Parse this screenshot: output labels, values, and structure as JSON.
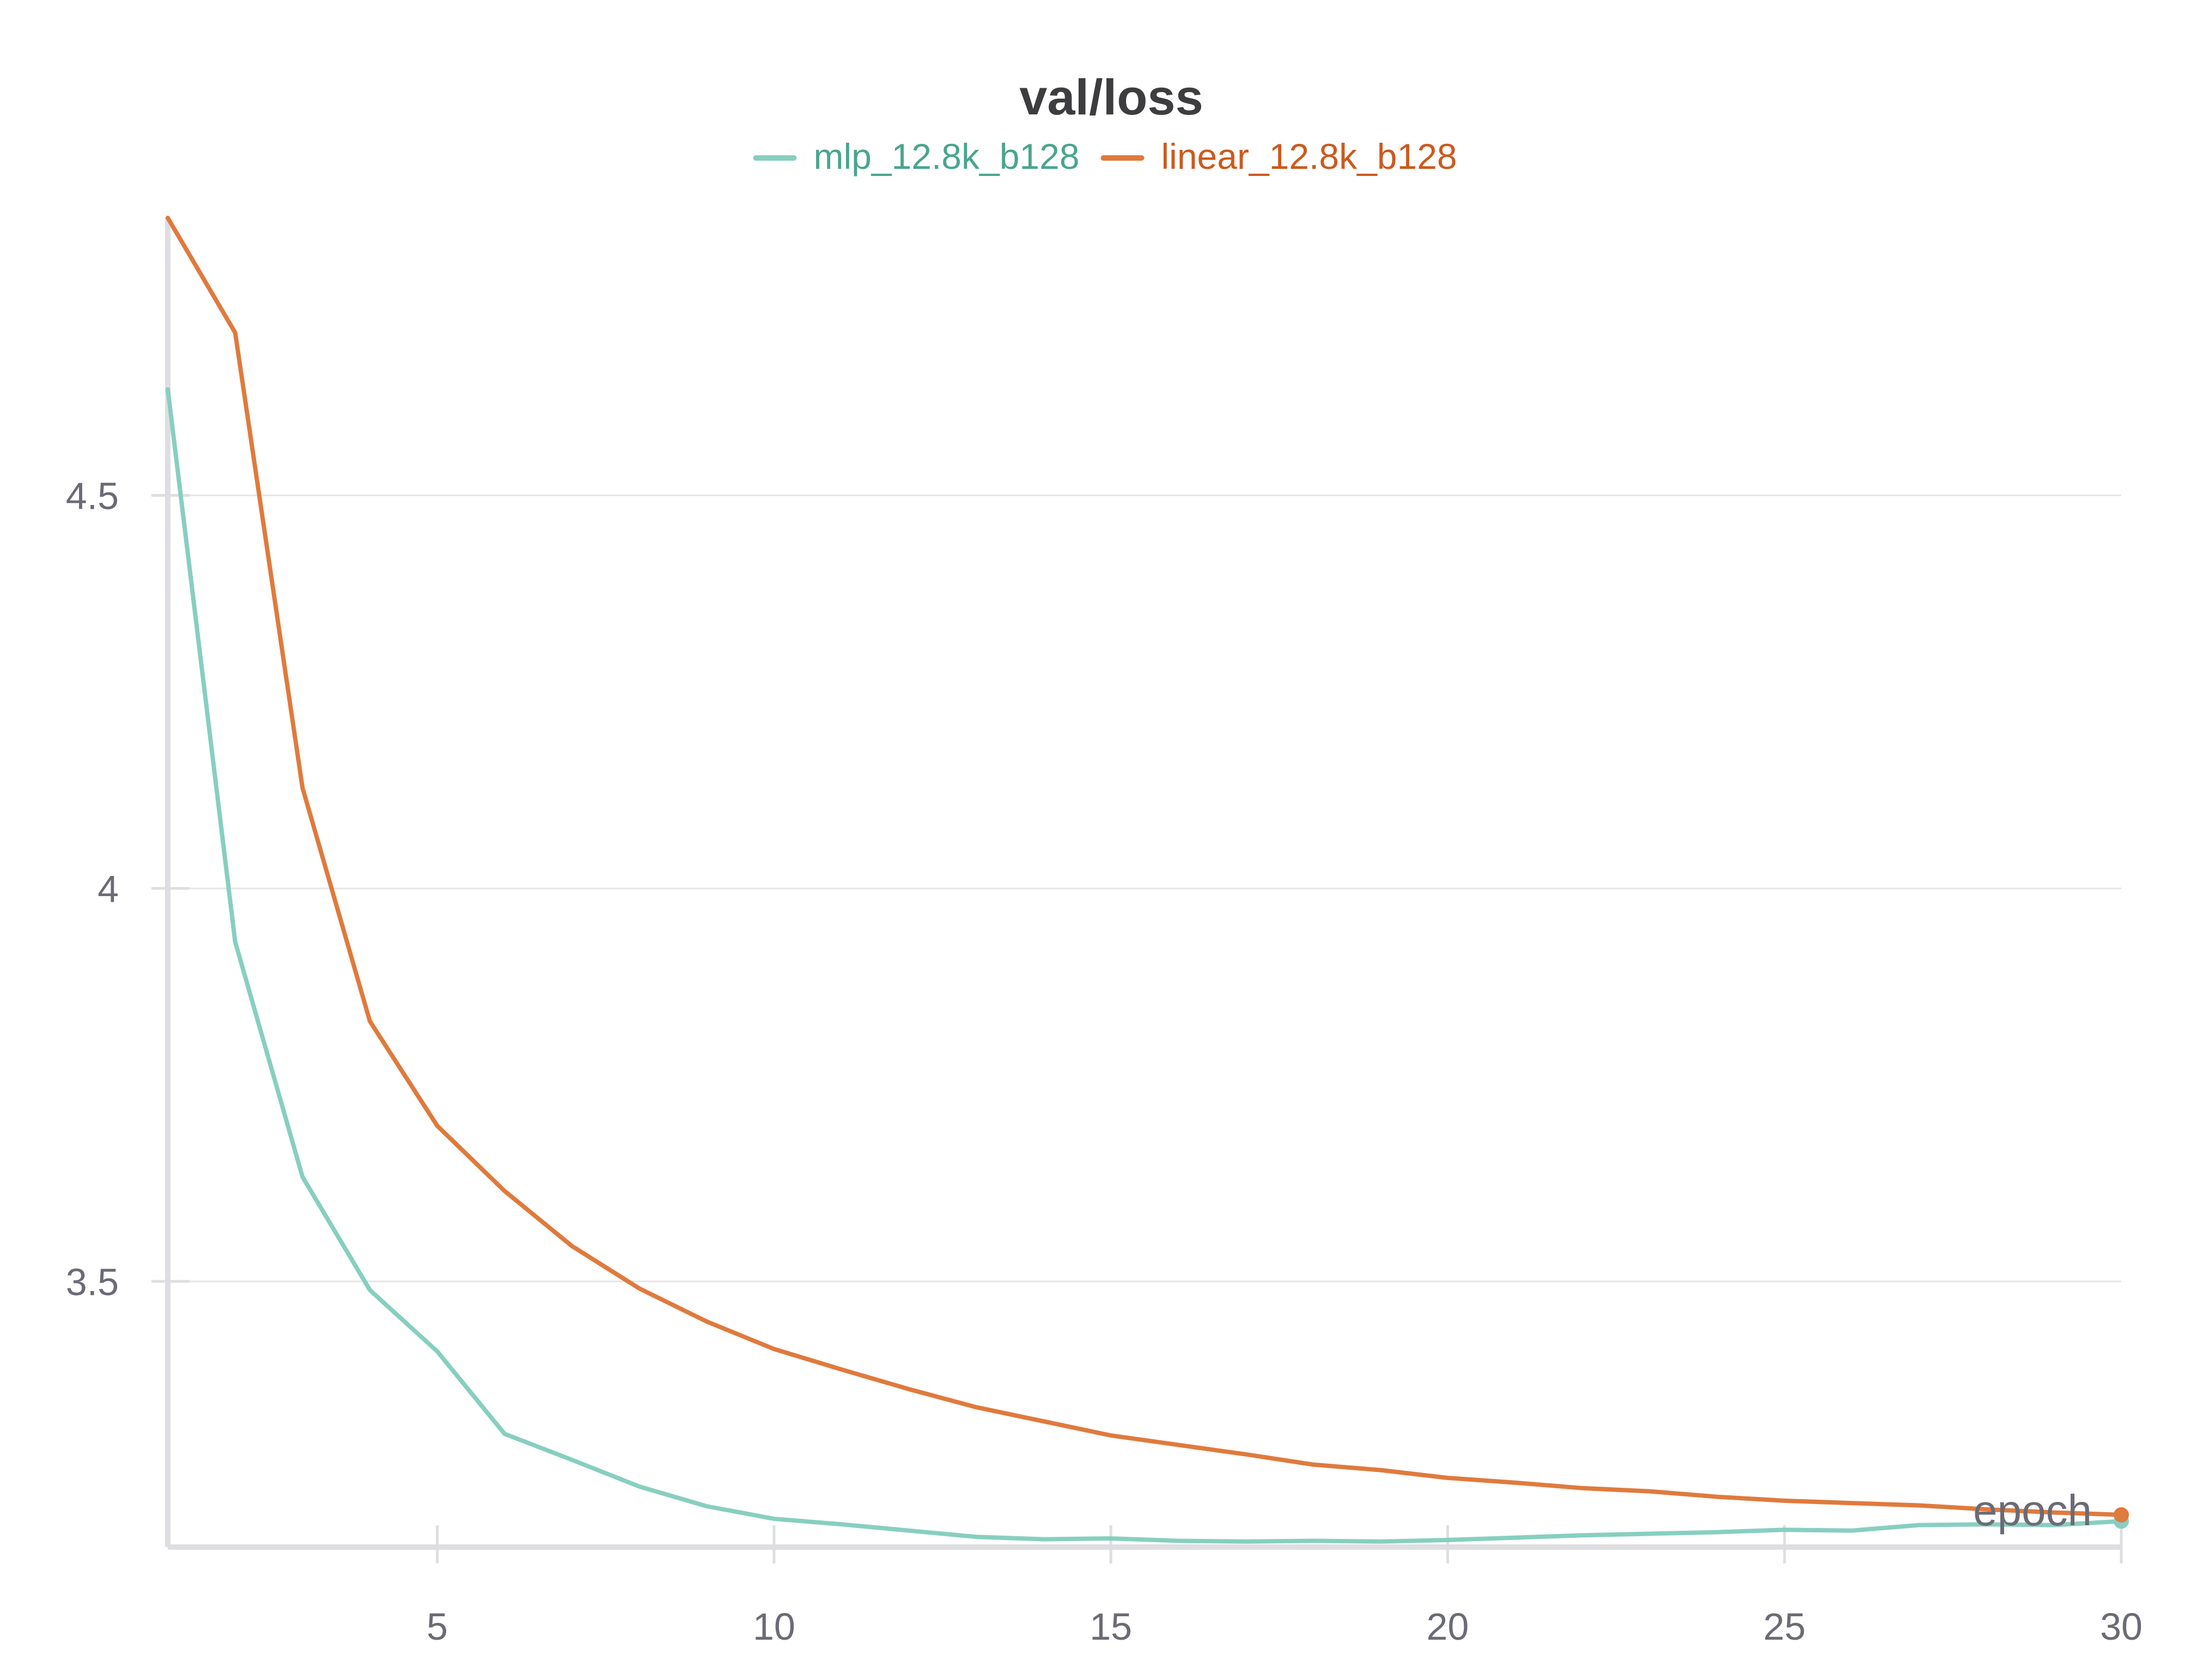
{
  "chart_data": {
    "type": "line",
    "title": "val/loss",
    "xlabel": "epoch",
    "ylabel": "",
    "x_ticks": [
      5,
      10,
      15,
      20,
      25,
      30
    ],
    "x_tick_labels": [
      "5",
      "10",
      "15",
      "20",
      "25",
      "30"
    ],
    "y_ticks": [
      3.5,
      4,
      4.5
    ],
    "y_tick_labels": [
      "3.5",
      "4",
      "4.5"
    ],
    "xlim": [
      1,
      30
    ],
    "ylim": [
      3.162,
      4.853
    ],
    "grid": true,
    "legend_position": "top-center",
    "x": [
      1,
      2,
      3,
      4,
      5,
      6,
      7,
      8,
      9,
      10,
      11,
      12,
      13,
      14,
      15,
      16,
      17,
      18,
      19,
      20,
      21,
      22,
      23,
      24,
      25,
      26,
      27,
      28,
      29,
      30
    ],
    "series": [
      {
        "name": "mlp_12.8k_b128",
        "color": "#87cfc0",
        "label_color": "#4aa58f",
        "values": [
          4.635,
          3.932,
          3.633,
          3.489,
          3.411,
          3.306,
          3.273,
          3.239,
          3.214,
          3.198,
          3.191,
          3.183,
          3.175,
          3.172,
          3.173,
          3.17,
          3.169,
          3.17,
          3.169,
          3.171,
          3.174,
          3.177,
          3.179,
          3.181,
          3.184,
          3.183,
          3.19,
          3.191,
          3.19,
          3.195
        ]
      },
      {
        "name": "linear_12.8k_b128",
        "color": "#e07a3d",
        "label_color": "#cc5a1e",
        "values": [
          4.853,
          4.707,
          4.128,
          3.831,
          3.698,
          3.615,
          3.545,
          3.491,
          3.449,
          3.414,
          3.388,
          3.363,
          3.34,
          3.322,
          3.304,
          3.292,
          3.28,
          3.267,
          3.26,
          3.25,
          3.244,
          3.237,
          3.233,
          3.226,
          3.221,
          3.218,
          3.215,
          3.21,
          3.206,
          3.203
        ]
      }
    ]
  }
}
